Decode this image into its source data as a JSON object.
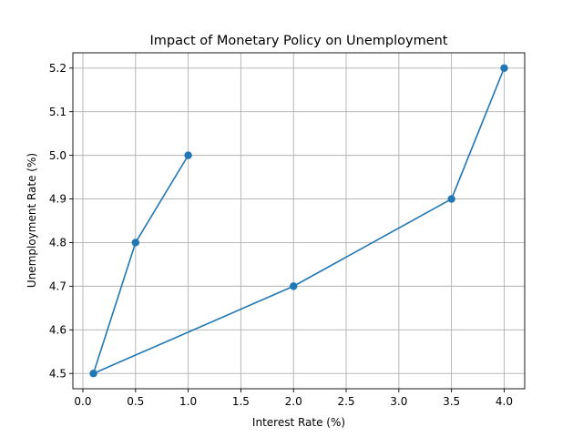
{
  "chart_data": {
    "type": "line",
    "title": "Impact of Monetary Policy on Unemployment",
    "xlabel": "Interest Rate (%)",
    "ylabel": "Unemployment Rate (%)",
    "xlim": [
      -0.095,
      4.195
    ],
    "ylim": [
      4.465,
      5.235
    ],
    "x_ticks": [
      0.0,
      0.5,
      1.0,
      1.5,
      2.0,
      2.5,
      3.0,
      3.5,
      4.0
    ],
    "x_tick_labels": [
      "0.0",
      "0.5",
      "1.0",
      "1.5",
      "2.0",
      "2.5",
      "3.0",
      "3.5",
      "4.0"
    ],
    "y_ticks": [
      4.5,
      4.6,
      4.7,
      4.8,
      4.9,
      5.0,
      5.1,
      5.2
    ],
    "y_tick_labels": [
      "4.5",
      "4.6",
      "4.7",
      "4.8",
      "4.9",
      "5.0",
      "5.1",
      "5.2"
    ],
    "grid": true,
    "series": [
      {
        "color": "#1f77b4",
        "marker": "circle",
        "x": [
          1.0,
          0.5,
          0.1,
          2.0,
          3.5,
          4.0
        ],
        "y": [
          5.0,
          4.8,
          4.5,
          4.7,
          4.9,
          5.2
        ]
      }
    ]
  }
}
